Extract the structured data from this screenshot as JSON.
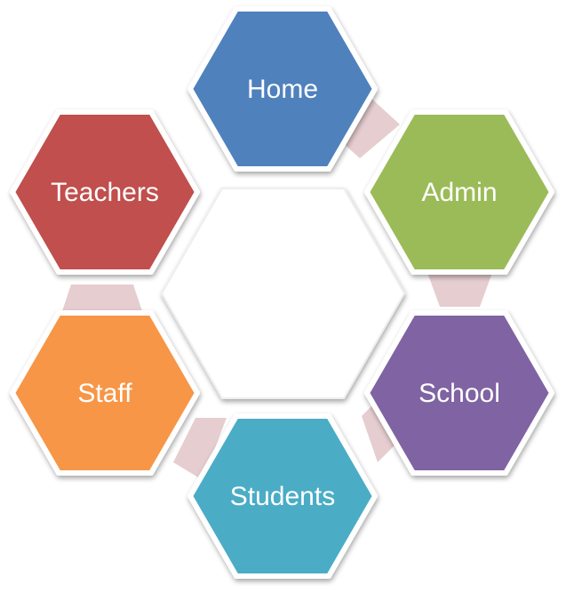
{
  "diagram": {
    "center_label": "",
    "connector_color": "#e6cdd0",
    "nodes": [
      {
        "id": "home",
        "label": "Home",
        "color": "#4f81bd"
      },
      {
        "id": "admin",
        "label": "Admin",
        "color": "#9bbb59"
      },
      {
        "id": "school",
        "label": "School",
        "color": "#8064a2"
      },
      {
        "id": "students",
        "label": "Students",
        "color": "#4bacc6"
      },
      {
        "id": "staff",
        "label": "Staff",
        "color": "#f79646"
      },
      {
        "id": "teachers",
        "label": "Teachers",
        "color": "#c0504d"
      }
    ]
  }
}
